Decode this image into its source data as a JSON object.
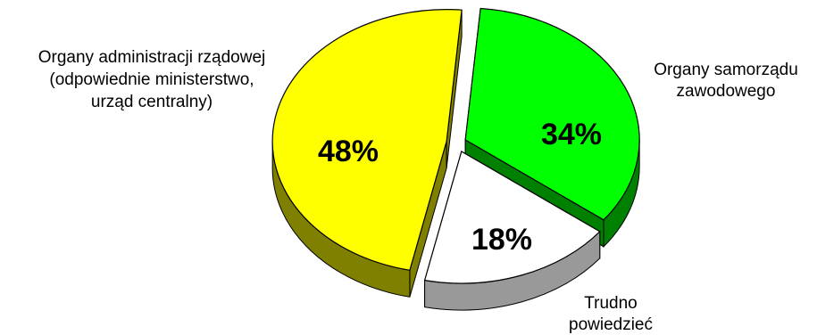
{
  "chart_data": {
    "type": "pie",
    "style": "3d-exploded",
    "title": "",
    "slices": [
      {
        "label_lines": [
          "Organy samorządu",
          "zawodowego"
        ],
        "value": 34,
        "value_label": "34%",
        "color": "#00ff00",
        "side_color": "#008000"
      },
      {
        "label_lines": [
          "Trudno",
          "powiedzieć"
        ],
        "value": 18,
        "value_label": "18%",
        "color": "#ffffff",
        "side_color": "#999999"
      },
      {
        "label_lines": [
          "Organy administracji rządowej",
          "(odpowiednie ministerstwo,",
          "urząd centralny)"
        ],
        "value": 48,
        "value_label": "48%",
        "color": "#ffff00",
        "side_color": "#808000"
      }
    ],
    "legend": "none"
  }
}
